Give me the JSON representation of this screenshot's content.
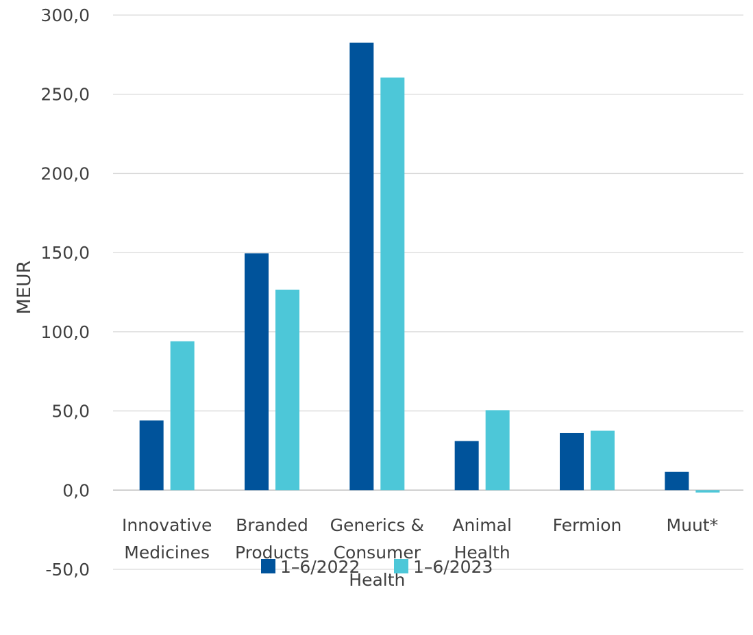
{
  "chart_data": {
    "type": "bar",
    "title": "",
    "xlabel": "",
    "ylabel": "MEUR",
    "ylim": [
      -50,
      300
    ],
    "yticks": [
      "300,0",
      "250,0",
      "200,0",
      "150,0",
      "100,0",
      "50,0",
      "0,0",
      "-50,0"
    ],
    "ytick_values": [
      300,
      250,
      200,
      150,
      100,
      50,
      0,
      -50
    ],
    "grid": true,
    "legend_position": "bottom",
    "categories": [
      [
        "Innovative",
        "Medicines"
      ],
      [
        "Branded",
        "Products"
      ],
      [
        "Generics &",
        "Consumer",
        "Health"
      ],
      [
        "Animal",
        "Health"
      ],
      [
        "Fermion"
      ],
      [
        "Muut*"
      ]
    ],
    "series": [
      {
        "name": "1–6/2022",
        "color": "#00539b",
        "values": [
          44,
          149.5,
          282.5,
          31,
          36,
          11.5
        ]
      },
      {
        "name": "1–6/2023",
        "color": "#4dc7d8",
        "values": [
          94,
          126.5,
          260.5,
          50.5,
          37.5,
          -1.5
        ]
      }
    ]
  }
}
